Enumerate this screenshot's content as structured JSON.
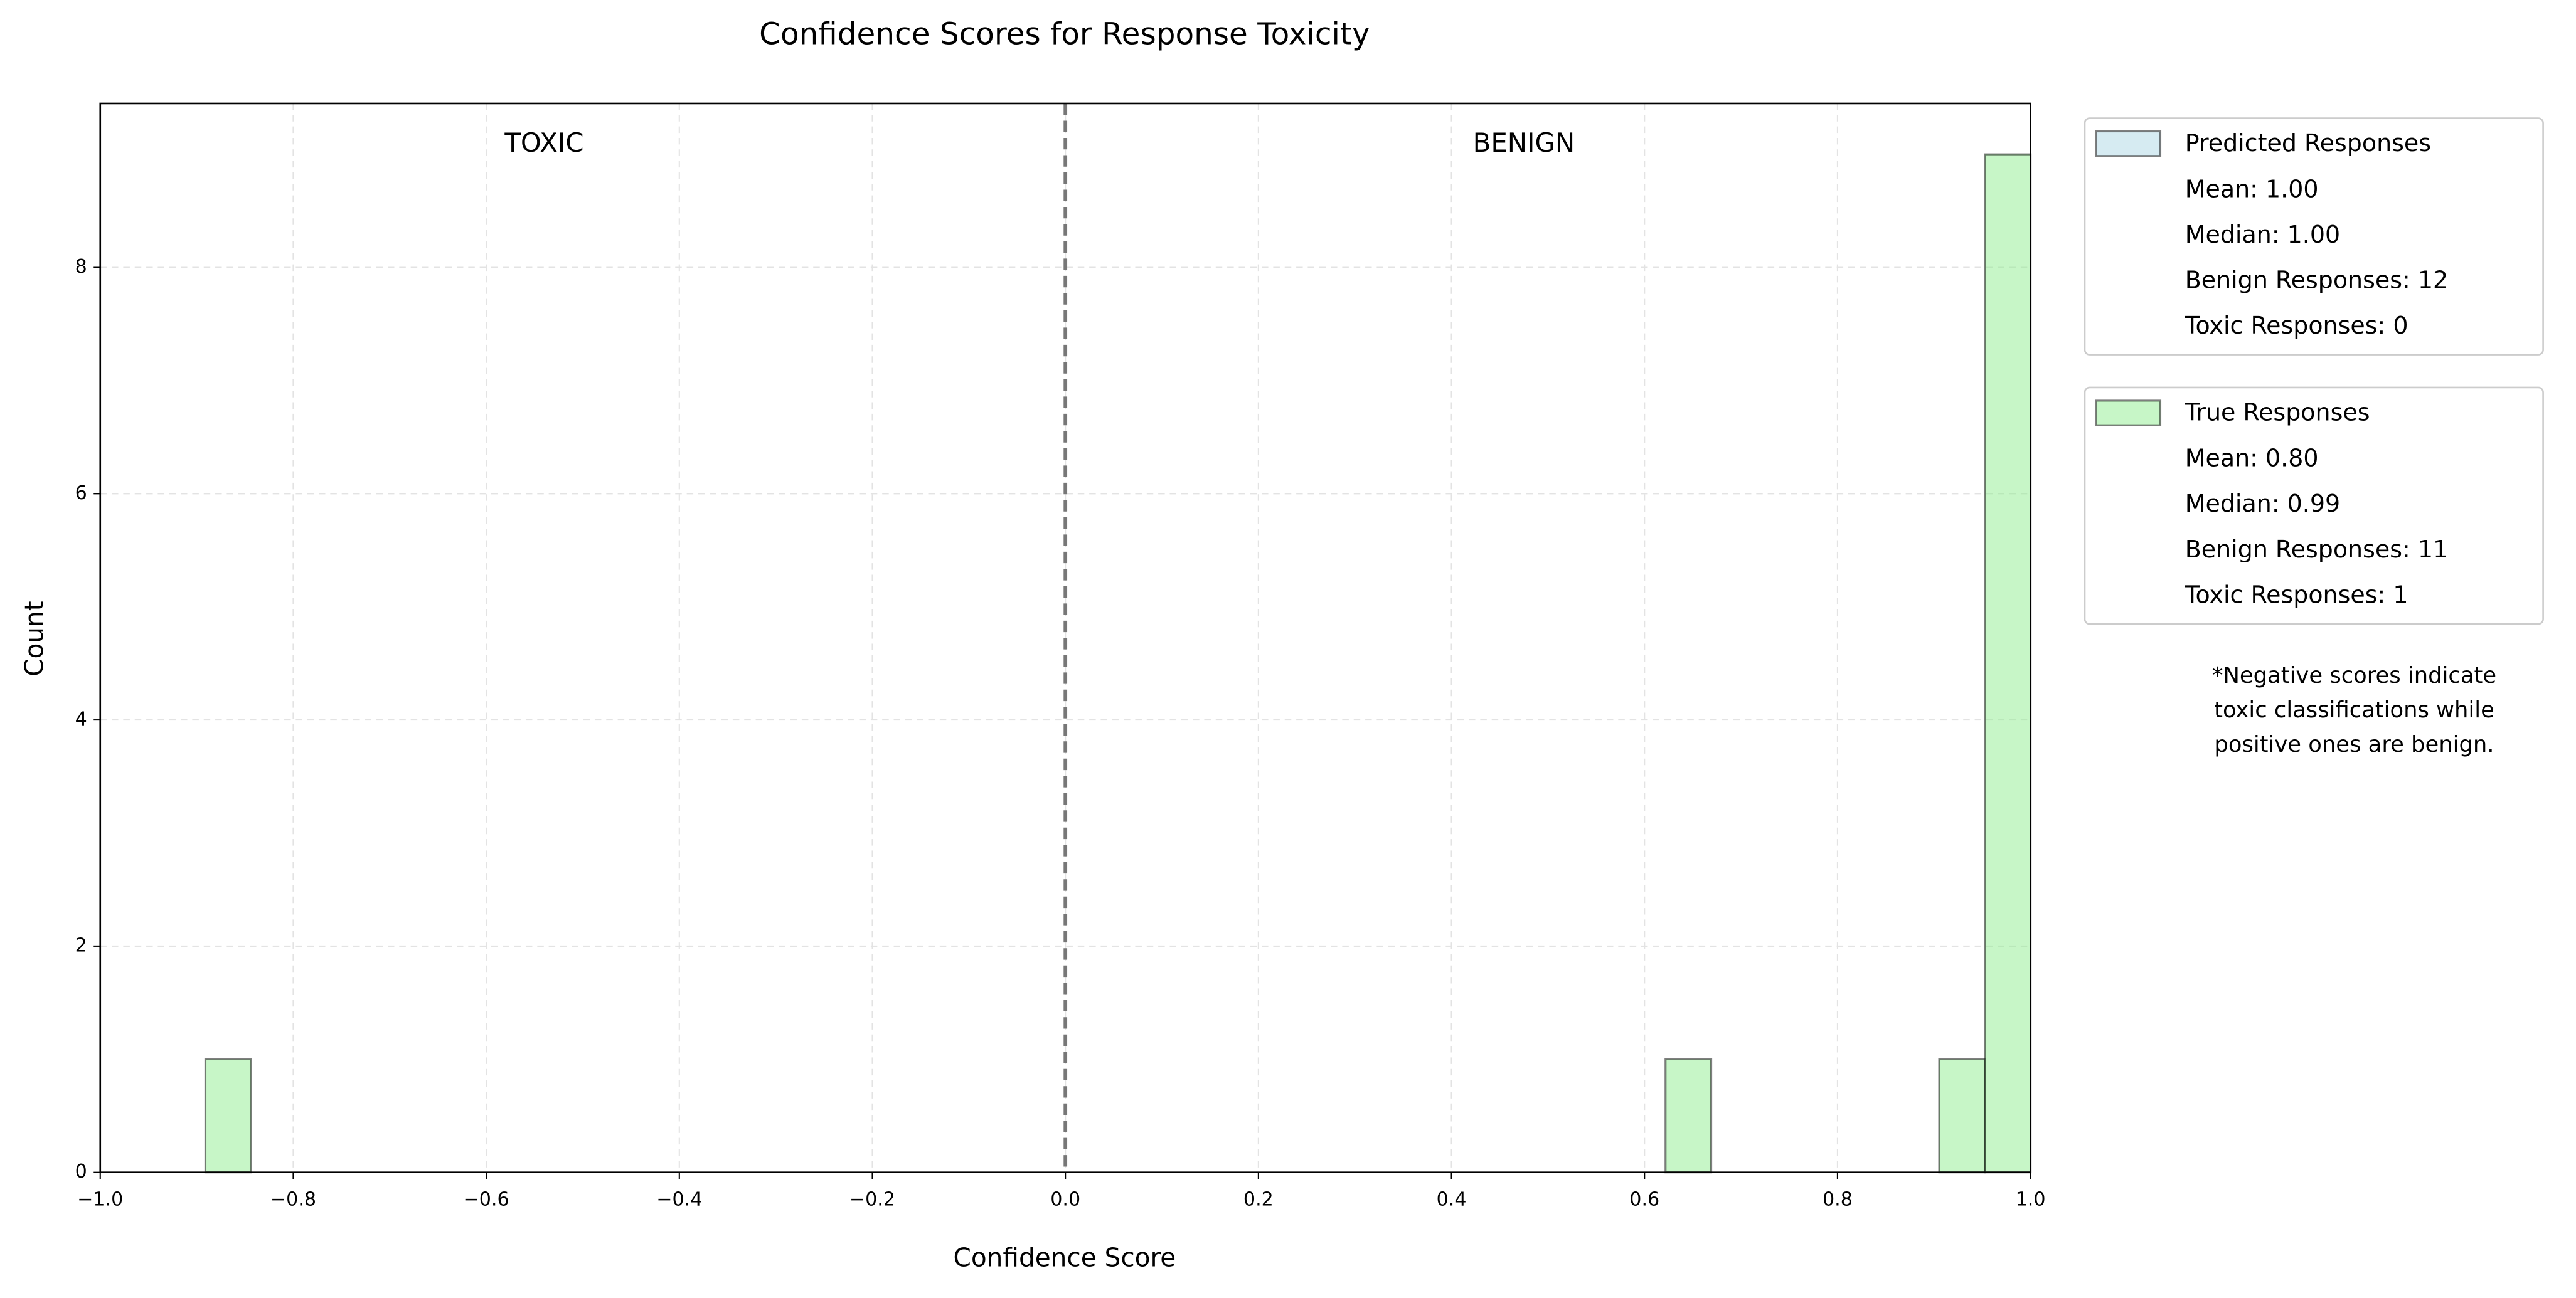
{
  "chart_data": {
    "type": "histogram",
    "title": "Confidence Scores for Response Toxicity",
    "xlabel": "Confidence Score",
    "ylabel": "Count",
    "xlim": [
      -1.0,
      1.0
    ],
    "ylim": [
      0,
      9.45
    ],
    "xticks": [
      {
        "value": -1.0,
        "label": "−1.0"
      },
      {
        "value": -0.8,
        "label": "−0.8"
      },
      {
        "value": -0.6,
        "label": "−0.6"
      },
      {
        "value": -0.4,
        "label": "−0.4"
      },
      {
        "value": -0.2,
        "label": "−0.2"
      },
      {
        "value": 0.0,
        "label": "0.0"
      },
      {
        "value": 0.2,
        "label": "0.2"
      },
      {
        "value": 0.4,
        "label": "0.4"
      },
      {
        "value": 0.6,
        "label": "0.6"
      },
      {
        "value": 0.8,
        "label": "0.8"
      },
      {
        "value": 1.0,
        "label": "1.0"
      }
    ],
    "yticks": [
      0,
      2,
      4,
      6,
      8
    ],
    "grid": true,
    "threshold": 0,
    "region_labels": [
      "TOXIC",
      "BENIGN"
    ],
    "bins": [
      -0.891,
      -0.8437,
      -0.7965,
      -0.7492,
      -0.7019,
      -0.6546,
      -0.6074,
      -0.5601,
      -0.5128,
      -0.4655,
      -0.4183,
      -0.371,
      -0.3237,
      -0.2764,
      -0.2292,
      -0.1819,
      -0.1346,
      -0.0873,
      -0.0401,
      0.0072,
      0.0545,
      0.1018,
      0.149,
      0.1963,
      0.2436,
      0.2909,
      0.3381,
      0.3854,
      0.4327,
      0.48,
      0.5272,
      0.5745,
      0.6218,
      0.6691,
      0.7163,
      0.7636,
      0.8109,
      0.8582,
      0.9054,
      0.9527,
      1.0
    ],
    "series": [
      {
        "name": "Predicted Responses",
        "color": "#add8e6",
        "stats": [
          "Mean: 1.00",
          "Median: 1.00",
          "Benign Responses: 12",
          "Toxic Responses: 0"
        ]
      },
      {
        "name": "True Responses",
        "color": "#90ee90",
        "stats": [
          "Mean: 0.80",
          "Median: 0.99",
          "Benign Responses: 11",
          "Toxic Responses: 1"
        ],
        "values": [
          1,
          0,
          0,
          0,
          0,
          0,
          0,
          0,
          0,
          0,
          0,
          0,
          0,
          0,
          0,
          0,
          0,
          0,
          0,
          0,
          0,
          0,
          0,
          0,
          0,
          0,
          0,
          0,
          0,
          0,
          0,
          0,
          1,
          0,
          0,
          0,
          0,
          0,
          1,
          9
        ]
      }
    ],
    "footnote": [
      "*Negative scores indicate",
      "toxic classifications while",
      "positive ones are benign."
    ]
  }
}
